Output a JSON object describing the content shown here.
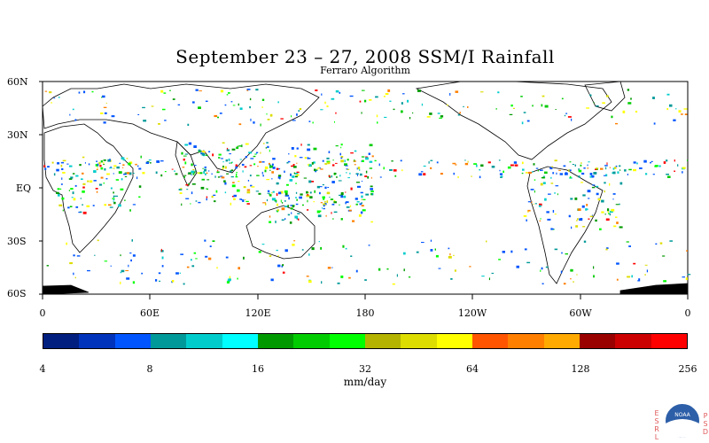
{
  "title": "September 23 – 27, 2008 SSM/I Rainfall",
  "subtitle": "Ferraro Algorithm",
  "map": {
    "lat_labels": [
      "60N",
      "30N",
      "EQ",
      "30S",
      "60S"
    ],
    "lon_labels": [
      "0",
      "60E",
      "120E",
      "180",
      "120W",
      "60W",
      "0"
    ],
    "lat_range": [
      -60,
      60
    ],
    "lon_range": [
      0,
      360
    ],
    "rain_bands_note": "Scattered precipitation along ITCZ, tropics, and storm tracks"
  },
  "colorbar": {
    "colors": [
      "#001f7f",
      "#0033bb",
      "#0055ff",
      "#009999",
      "#00cccc",
      "#00ffff",
      "#009900",
      "#00cc00",
      "#00ff00",
      "#b3b300",
      "#dddd00",
      "#ffff00",
      "#ff5500",
      "#ff7f00",
      "#ffaa00",
      "#990000",
      "#cc0000",
      "#ff0000"
    ],
    "tick_labels": [
      "4",
      "8",
      "16",
      "32",
      "64",
      "128",
      "256"
    ],
    "units": "mm/day"
  },
  "logo": {
    "left_text": "ESRL",
    "right_text": "PSD",
    "center_text": "NOAA"
  }
}
